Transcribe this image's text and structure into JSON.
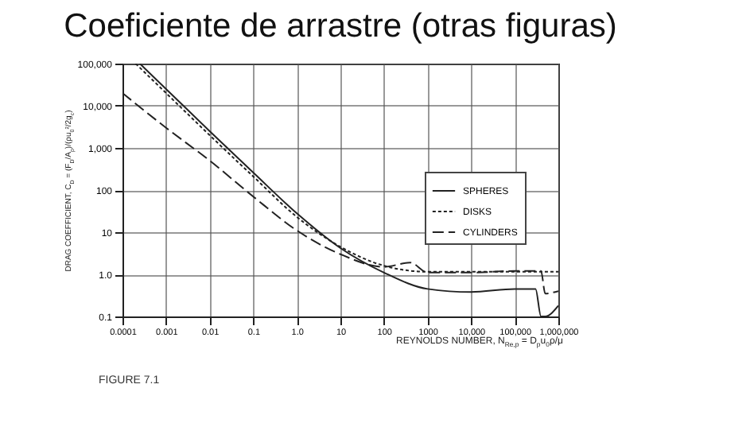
{
  "chart_data": {
    "type": "line",
    "title": "Coeficiente de arrastre (otras figuras)",
    "xlabel": "REYNOLDS NUMBER, N$_{Re,p}$ = D$_{p}$u$_{0}$ρ/μ",
    "ylabel": "DRAG COEFFICIENT, C$_{D}$ = (F$_{D}$/A$_{p}$)/(ρu$_{0}$²/2g$_{c}$)",
    "annotations": [
      "FIGURE 7.1"
    ],
    "log": "xy",
    "grid": true,
    "legend": "right",
    "xlim": [
      0.0001,
      1000000
    ],
    "ylim": [
      0.1,
      100000
    ],
    "xticks": [
      {
        "value": 0.0001,
        "label": "0.0001"
      },
      {
        "value": 0.001,
        "label": "0.001"
      },
      {
        "value": 0.01,
        "label": "0.01"
      },
      {
        "value": 0.1,
        "label": "0.1"
      },
      {
        "value": 1,
        "label": "1.0"
      },
      10,
      100,
      1000,
      {
        "value": 10000,
        "label": "10,000"
      },
      {
        "value": 100000,
        "label": "100,000"
      },
      {
        "value": 1000000,
        "label": "1,000,000"
      }
    ],
    "yticks": [
      0.1,
      {
        "value": 1,
        "label": "1.0"
      },
      10,
      100,
      {
        "value": 1000,
        "label": "1,000"
      },
      {
        "value": 10000,
        "label": "10,000"
      },
      {
        "value": 100000,
        "label": "100,000"
      }
    ],
    "series": [
      {
        "name": "SPHERES",
        "color": "#222222",
        "line_style": "solid",
        "x": [
          0.00025,
          0.001,
          0.01,
          0.1,
          1,
          10,
          100,
          1000,
          10000,
          100000,
          300000,
          400000,
          500000,
          1000000
        ],
        "values": [
          100000,
          25000,
          2500,
          260,
          28,
          4.2,
          1.1,
          0.45,
          0.38,
          0.45,
          0.45,
          0.1,
          0.1,
          0.18
        ]
      },
      {
        "name": "DISKS",
        "color": "#222222",
        "line_style": "dotted",
        "x": [
          0.0002,
          0.001,
          0.01,
          0.1,
          1,
          10,
          100,
          1000,
          10000,
          100000,
          1000000
        ],
        "values": [
          100000,
          20000,
          2000,
          210,
          23,
          4.5,
          1.6,
          1.15,
          1.15,
          1.15,
          1.15
        ]
      },
      {
        "name": "CYLINDERS",
        "color": "#222222",
        "line_style": "dashed",
        "x": [
          0.0001,
          0.001,
          0.01,
          0.1,
          1,
          10,
          100,
          400,
          1000,
          10000,
          100000,
          400000,
          500000,
          1000000
        ],
        "values": [
          20000,
          3000,
          500,
          70,
          11,
          3,
          1.5,
          1.9,
          1.1,
          1.1,
          1.2,
          1.2,
          0.35,
          0.4
        ]
      }
    ]
  }
}
